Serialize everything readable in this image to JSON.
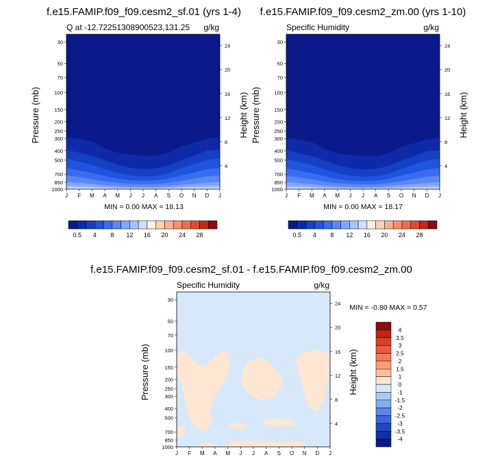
{
  "panels": [
    {
      "title": "f.e15.FAMIP.f09_f09.cesm2_sf.01 (yrs 1-4)",
      "left_label": "Q at -12.72251308900523,131.25",
      "right_label": "g/kg",
      "min_max": "MIN =   0.00 MAX =  18.13",
      "ylabel": "Pressure (mb)",
      "y2label": "Height (km)"
    },
    {
      "title": "f.e15.FAMIP.f09_f09.cesm2_zm.00 (yrs 1-10)",
      "left_label": "Specific Humidity",
      "right_label": "g/kg",
      "min_max": "MIN =   0.00 MAX =  18.17",
      "ylabel": "Pressure (mb)",
      "y2label": "Height (km)"
    },
    {
      "title": "f.e15.FAMIP.f09_f09.cesm2_sf.01 - f.e15.FAMIP.f09_f09.cesm2_zm.00",
      "left_label": "Specific Humidity",
      "right_label": "g/kg",
      "min_max": "MIN = -0.80 MAX =   0.57",
      "ylabel": "Pressure (mb)",
      "y2label": "Height (km)"
    }
  ],
  "chart_data": {
    "type": "heatmap",
    "x_ticks": [
      "J",
      "F",
      "M",
      "A",
      "M",
      "J",
      "J",
      "A",
      "S",
      "O",
      "N",
      "D",
      "J"
    ],
    "pressure_ticks": [
      30,
      50,
      70,
      100,
      150,
      200,
      250,
      300,
      400,
      500,
      700,
      850,
      1000
    ],
    "pressure_range": [
      25,
      1000
    ],
    "height_ticks": [
      4,
      8,
      12,
      16,
      20,
      24
    ],
    "field_levels": [
      "0.5",
      "4",
      "8",
      "12",
      "16",
      "20",
      "24",
      "28"
    ],
    "field_colors": [
      "#0a1a8a",
      "#0e2aa8",
      "#1440c4",
      "#1f55de",
      "#3a6cef",
      "#5a88f5",
      "#7fa6f8",
      "#a7c3fb",
      "#cfe0fd",
      "#fff0e0",
      "#fdd0b4",
      "#fbb08e",
      "#f78f6b",
      "#f06d4c",
      "#e04a30",
      "#c3271a",
      "#8a0d0c"
    ],
    "diff_levels": [
      "4",
      "3.5",
      "3",
      "2.5",
      "2",
      "1.5",
      "1",
      "0",
      "-1",
      "-1.5",
      "-2",
      "-2.5",
      "-3",
      "-3.5",
      "-4"
    ],
    "diff_colors": [
      "#8a0d0c",
      "#c0241a",
      "#d9402a",
      "#ec5c3c",
      "#f57b56",
      "#fa9b76",
      "#fcbfa0",
      "#fde6d2",
      "#d7e8fb",
      "#adc9f7",
      "#86abf1",
      "#5a88ea",
      "#3a67dd",
      "#1f47c4",
      "#1130a8",
      "#0a1a8a"
    ],
    "panel_a_contours": {
      "pressure_levels": [
        300,
        400,
        500,
        600,
        700,
        800,
        900,
        950
      ],
      "months": [
        1,
        2,
        3,
        4,
        5,
        6,
        7,
        8,
        9,
        10,
        11,
        12,
        13
      ],
      "boundary_pressure": [
        [
          290,
          300,
          320,
          380,
          420,
          440,
          450,
          450,
          420,
          360,
          330,
          300,
          290
        ],
        [
          390,
          420,
          450,
          500,
          560,
          600,
          620,
          610,
          570,
          500,
          450,
          400,
          390
        ],
        [
          480,
          520,
          560,
          620,
          680,
          720,
          740,
          730,
          690,
          610,
          550,
          500,
          480
        ],
        [
          600,
          640,
          680,
          730,
          780,
          810,
          820,
          810,
          780,
          720,
          670,
          620,
          600
        ],
        [
          720,
          750,
          790,
          830,
          860,
          880,
          890,
          885,
          860,
          820,
          780,
          740,
          720
        ],
        [
          840,
          860,
          880,
          910,
          930,
          940,
          945,
          940,
          925,
          900,
          880,
          860,
          840
        ],
        [
          920,
          930,
          940,
          955,
          965,
          970,
          975,
          972,
          965,
          950,
          940,
          930,
          920
        ],
        [
          965,
          970,
          975,
          982,
          987,
          990,
          992,
          990,
          985,
          978,
          972,
          968,
          965
        ]
      ]
    },
    "panel_b_contours": {
      "pressure_levels": [
        300,
        400,
        500,
        600,
        700,
        800,
        900,
        950
      ],
      "months": [
        1,
        2,
        3,
        4,
        5,
        6,
        7,
        8,
        9,
        10,
        11,
        12,
        13
      ],
      "boundary_pressure": [
        [
          295,
          305,
          325,
          385,
          425,
          445,
          455,
          455,
          425,
          365,
          335,
          305,
          295
        ],
        [
          395,
          425,
          455,
          505,
          565,
          605,
          625,
          615,
          575,
          505,
          455,
          405,
          395
        ],
        [
          485,
          525,
          565,
          625,
          685,
          725,
          745,
          735,
          695,
          615,
          555,
          505,
          485
        ],
        [
          605,
          645,
          685,
          735,
          785,
          815,
          825,
          815,
          785,
          725,
          675,
          625,
          605
        ],
        [
          725,
          755,
          795,
          835,
          865,
          885,
          895,
          890,
          865,
          825,
          785,
          745,
          725
        ],
        [
          845,
          865,
          885,
          915,
          935,
          945,
          950,
          945,
          930,
          905,
          885,
          865,
          845
        ],
        [
          925,
          935,
          945,
          960,
          970,
          975,
          978,
          976,
          970,
          955,
          945,
          935,
          925
        ],
        [
          967,
          972,
          977,
          984,
          989,
          992,
          994,
          992,
          987,
          980,
          974,
          970,
          967
        ]
      ]
    },
    "diff_patches": "positive anomalies (0 to 1 g/kg) in lower and middle troposphere, near-zero elsewhere"
  }
}
